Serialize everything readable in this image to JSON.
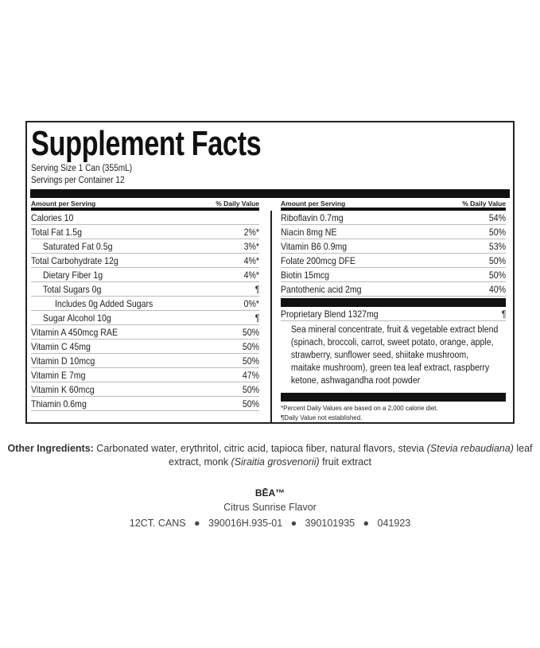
{
  "title": "Supplement Facts",
  "serving_size": "Serving Size 1 Can (355mL)",
  "servings_per_container": "Servings per Container 12",
  "header": {
    "amount": "Amount per Serving",
    "dv": "% Daily Value"
  },
  "left_rows": [
    {
      "label": "Calories 10",
      "dv": "",
      "indent": 0
    },
    {
      "label": "Total Fat 1.5g",
      "dv": "2%*",
      "indent": 0
    },
    {
      "label": "Saturated Fat 0.5g",
      "dv": "3%*",
      "indent": 1
    },
    {
      "label": "Total Carbohydrate 12g",
      "dv": "4%*",
      "indent": 0
    },
    {
      "label": "Dietary Fiber 1g",
      "dv": "4%*",
      "indent": 1
    },
    {
      "label": "Total Sugars 0g",
      "dv": "¶",
      "indent": 1
    },
    {
      "label": "Includes 0g Added Sugars",
      "dv": "0%*",
      "indent": 2
    },
    {
      "label": "Sugar Alcohol 10g",
      "dv": "¶",
      "indent": 1
    },
    {
      "label": "Vitamin A 450mcg RAE",
      "dv": "50%",
      "indent": 0
    },
    {
      "label": "Vitamin C 45mg",
      "dv": "50%",
      "indent": 0
    },
    {
      "label": "Vitamin D 10mcg",
      "dv": "50%",
      "indent": 0
    },
    {
      "label": "Vitamin E 7mg",
      "dv": "47%",
      "indent": 0
    },
    {
      "label": "Vitamin K 60mcg",
      "dv": "50%",
      "indent": 0
    },
    {
      "label": "Thiamin 0.6mg",
      "dv": "50%",
      "indent": 0
    }
  ],
  "right_rows": [
    {
      "label": "Riboflavin 0.7mg",
      "dv": "54%"
    },
    {
      "label": "Niacin 8mg NE",
      "dv": "50%"
    },
    {
      "label": "Vitamin B6 0.9mg",
      "dv": "53%"
    },
    {
      "label": "Folate 200mcg DFE",
      "dv": "50%"
    },
    {
      "label": "Biotin 15mcg",
      "dv": "50%"
    },
    {
      "label": "Pantothenic acid 2mg",
      "dv": "40%"
    }
  ],
  "blend": {
    "label": "Proprietary Blend 1327mg",
    "dv": "¶",
    "ingredients": "Sea mineral concentrate, fruit & vegetable extract blend (spinach, broccoli, carrot, sweet potato, orange, apple, strawberry, sunflower seed, shiitake mushroom, maitake mushroom), green tea leaf extract, raspberry ketone, ashwagandha root powder"
  },
  "footnotes": [
    "*Percent Daily Values are based on a 2,000 calorie diet.",
    "¶Daily Value not established."
  ],
  "other_ingredients": {
    "label": "Other Ingredients:",
    "p1": " Carbonated water, erythritol, citric acid, tapioca fiber, natural flavors, stevia ",
    "i1": "(Stevia rebaudiana)",
    "p2": " leaf extract, monk ",
    "i2": "(Siraitia grosvenorii)",
    "p3": " fruit extract"
  },
  "brand": "BĒA™",
  "flavor": "Citrus Sunrise Flavor",
  "codes": [
    "12CT. CANS",
    "390016H.935-01",
    "390101935",
    "041923"
  ]
}
